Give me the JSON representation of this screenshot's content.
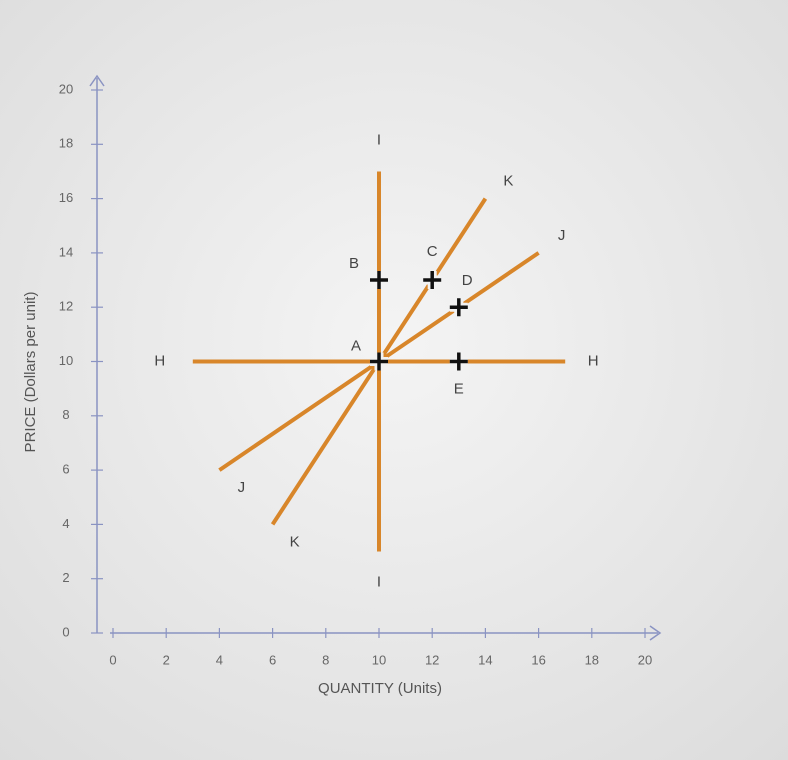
{
  "chart_data": {
    "type": "line",
    "x_label": "QUANTITY (Units)",
    "y_label": "PRICE (Dollars per unit)",
    "xlim": [
      0,
      20
    ],
    "ylim": [
      0,
      20
    ],
    "xticks": [
      0,
      2,
      4,
      6,
      8,
      10,
      12,
      14,
      16,
      18,
      20
    ],
    "yticks": [
      0,
      2,
      4,
      6,
      8,
      10,
      12,
      14,
      16,
      18,
      20
    ],
    "series": [
      {
        "name": "H",
        "color": "#d8862a",
        "x": [
          3,
          17
        ],
        "values": [
          10,
          10
        ]
      },
      {
        "name": "I",
        "color": "#d8862a",
        "x": [
          10,
          10
        ],
        "values": [
          3,
          17
        ]
      },
      {
        "name": "J",
        "color": "#d8862a",
        "x": [
          4,
          16
        ],
        "values": [
          6,
          14
        ]
      },
      {
        "name": "K",
        "color": "#d8862a",
        "x": [
          6,
          14
        ],
        "values": [
          4,
          16
        ]
      }
    ],
    "points": [
      {
        "label": "A",
        "x": 10,
        "y": 10
      },
      {
        "label": "B",
        "x": 10,
        "y": 13
      },
      {
        "label": "C",
        "x": 12,
        "y": 13
      },
      {
        "label": "D",
        "x": 13,
        "y": 12
      },
      {
        "label": "E",
        "x": 13,
        "y": 10
      }
    ]
  }
}
